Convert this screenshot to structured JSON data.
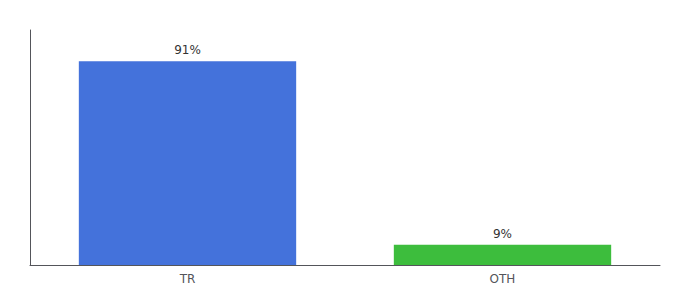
{
  "chart_data": {
    "type": "bar",
    "categories": [
      "TR",
      "OTH"
    ],
    "values": [
      91,
      9
    ],
    "colors": [
      "#4472DB",
      "#3DBD3D"
    ],
    "data_labels": true,
    "value_labels": [
      "91%",
      "9%"
    ],
    "ylim": [
      0,
      105
    ],
    "grid": false,
    "tick_labels": "x"
  }
}
